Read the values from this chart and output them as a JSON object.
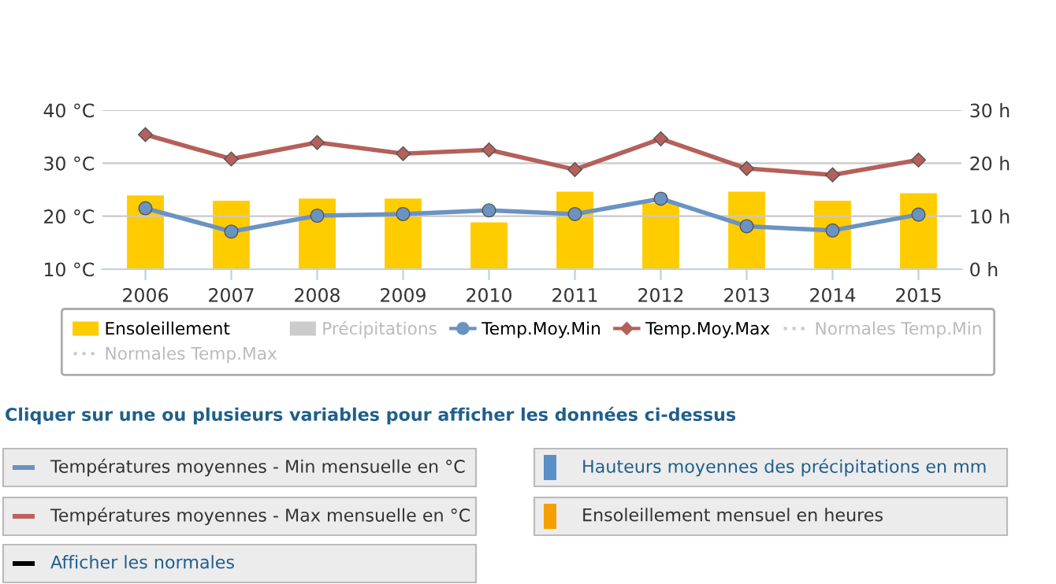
{
  "chart_data": {
    "type": "line",
    "categories": [
      "2006",
      "2007",
      "2008",
      "2009",
      "2010",
      "2011",
      "2012",
      "2013",
      "2014",
      "2015"
    ],
    "series": [
      {
        "name": "Ensoleillement",
        "type": "bar",
        "axis": "y2",
        "color": "#ffcc00",
        "values": [
          14.1,
          13.1,
          13.5,
          13.5,
          9.0,
          14.8,
          12.6,
          14.8,
          13.1,
          14.5
        ]
      },
      {
        "name": "Précipitations",
        "type": "bar",
        "axis": "y2",
        "color": "#cccccc",
        "values": [
          null,
          null,
          null,
          null,
          null,
          null,
          null,
          null,
          null,
          null
        ]
      },
      {
        "name": "Temp.Moy.Min",
        "marker": "circle",
        "color": "#6a93c2",
        "values": [
          21.5,
          17.1,
          20.1,
          20.4,
          21.1,
          20.4,
          23.3,
          18.1,
          17.3,
          20.3
        ]
      },
      {
        "name": "Temp.Moy.Max",
        "marker": "diamond",
        "color": "#b5605a",
        "values": [
          35.4,
          30.8,
          33.9,
          31.8,
          32.5,
          28.8,
          34.6,
          29.0,
          27.8,
          30.6
        ]
      },
      {
        "name": "Normales Temp.Min",
        "line_style": "dotted",
        "color": "#cccccc",
        "values": [
          null,
          null,
          null,
          null,
          null,
          null,
          null,
          null,
          null,
          null
        ]
      },
      {
        "name": "Normales Temp.Max",
        "line_style": "dotted",
        "color": "#cccccc",
        "values": [
          null,
          null,
          null,
          null,
          null,
          null,
          null,
          null,
          null,
          null
        ]
      }
    ],
    "ylim": [
      10,
      40
    ],
    "yticks": [
      {
        "value": 10,
        "label": "10 °C"
      },
      {
        "value": 20,
        "label": "20 °C"
      },
      {
        "value": 30,
        "label": "30 °C"
      },
      {
        "value": 40,
        "label": "40 °C"
      }
    ],
    "y2lim": [
      0,
      30
    ],
    "y2ticks": [
      {
        "value": 0,
        "label": "0 h"
      },
      {
        "value": 10,
        "label": "10 h"
      },
      {
        "value": 20,
        "label": "20 h"
      },
      {
        "value": 30,
        "label": "30 h"
      }
    ],
    "grid": "y",
    "legend": "bottom",
    "annotations": [
      "Cliquer sur une ou plusieurs variables pour afficher les données ci-dessus",
      "Températures moyennes - Min mensuelle en °C",
      "Hauteurs moyennes des précipitations en mm",
      "Températures moyennes - Max mensuelle en °C",
      "Ensoleillement mensuel en heures",
      "Afficher les normales"
    ]
  }
}
